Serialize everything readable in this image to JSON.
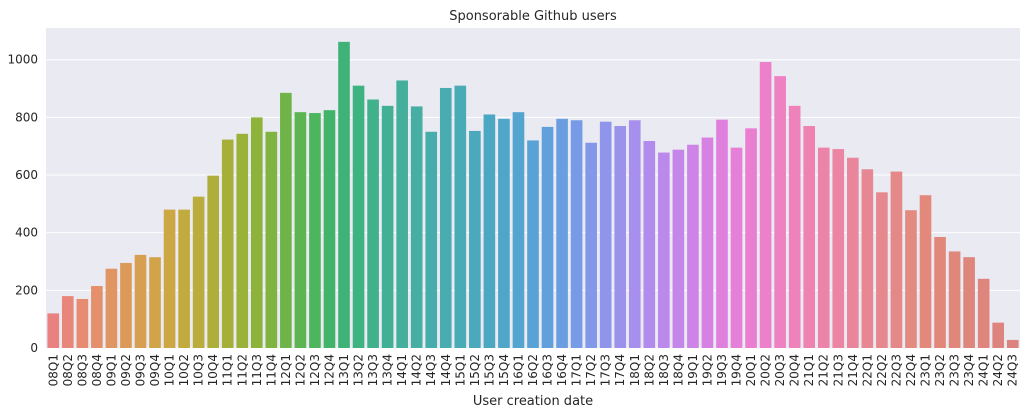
{
  "chart_data": {
    "type": "bar",
    "title": "Sponsorable Github users",
    "xlabel": "User creation date",
    "ylabel": "",
    "ylim": [
      0,
      1110
    ],
    "yticks": [
      0,
      200,
      400,
      600,
      800,
      1000
    ],
    "grid": true,
    "categories": [
      "08Q1",
      "08Q2",
      "08Q3",
      "08Q4",
      "09Q1",
      "09Q2",
      "09Q3",
      "09Q4",
      "10Q1",
      "10Q2",
      "10Q3",
      "10Q4",
      "11Q1",
      "11Q2",
      "11Q3",
      "11Q4",
      "12Q1",
      "12Q2",
      "12Q3",
      "12Q4",
      "13Q1",
      "13Q2",
      "13Q3",
      "13Q4",
      "14Q1",
      "14Q2",
      "14Q3",
      "14Q4",
      "15Q1",
      "15Q2",
      "15Q3",
      "15Q4",
      "16Q1",
      "16Q2",
      "16Q3",
      "16Q4",
      "17Q1",
      "17Q2",
      "17Q3",
      "17Q4",
      "18Q1",
      "18Q2",
      "18Q3",
      "18Q4",
      "19Q1",
      "19Q2",
      "19Q3",
      "19Q4",
      "20Q1",
      "20Q2",
      "20Q3",
      "20Q4",
      "21Q1",
      "21Q2",
      "21Q3",
      "21Q4",
      "22Q1",
      "22Q2",
      "22Q3",
      "22Q4",
      "23Q1",
      "23Q2",
      "23Q3",
      "23Q4",
      "24Q1",
      "24Q2",
      "24Q3"
    ],
    "values": [
      120,
      180,
      170,
      215,
      275,
      295,
      323,
      315,
      480,
      480,
      525,
      598,
      723,
      743,
      800,
      750,
      885,
      818,
      815,
      825,
      1062,
      910,
      862,
      840,
      928,
      838,
      750,
      902,
      910,
      753,
      810,
      795,
      818,
      720,
      767,
      795,
      790,
      712,
      785,
      770,
      790,
      718,
      678,
      688,
      705,
      730,
      792,
      695,
      762,
      992,
      943,
      840,
      770,
      695,
      690,
      660,
      620,
      540,
      612,
      478,
      530,
      385,
      335,
      315,
      240,
      88,
      28
    ],
    "colors": [
      "#e8817f",
      "#e88679",
      "#e78b71",
      "#e4906a",
      "#e19562",
      "#dc9a5a",
      "#d79f52",
      "#d2a44a",
      "#cca744",
      "#c3aa3f",
      "#baac3d",
      "#b0ae3a",
      "#a6b039",
      "#9ab239",
      "#8db33b",
      "#7fb440",
      "#6fb448",
      "#5db551",
      "#4cb55d",
      "#42b46a",
      "#3fb377",
      "#3fb282",
      "#40b18b",
      "#42b094",
      "#44af9c",
      "#46aea3",
      "#47adaa",
      "#48acb0",
      "#49abb6",
      "#4aa9bc",
      "#4ca8c2",
      "#4fa6c9",
      "#53a4cf",
      "#59a2d5",
      "#61a0db",
      "#6b9ee1",
      "#779be6",
      "#8398e9",
      "#8f95eb",
      "#9b92ec",
      "#a68fed",
      "#b18ced",
      "#bb89ec",
      "#c586ea",
      "#ce83e7",
      "#d781e3",
      "#df80de",
      "#e57fd8",
      "#ea7fd1",
      "#ec80ca",
      "#ee81c2",
      "#ee82ba",
      "#ee83b2",
      "#ec84aa",
      "#eb85a3",
      "#e9869c",
      "#e78794",
      "#e6888d",
      "#e48987",
      "#e38a81",
      "#e2897c",
      "#e1887b",
      "#e0877b",
      "#df867c",
      "#de857d",
      "#dd847e",
      "#dd837f"
    ]
  }
}
